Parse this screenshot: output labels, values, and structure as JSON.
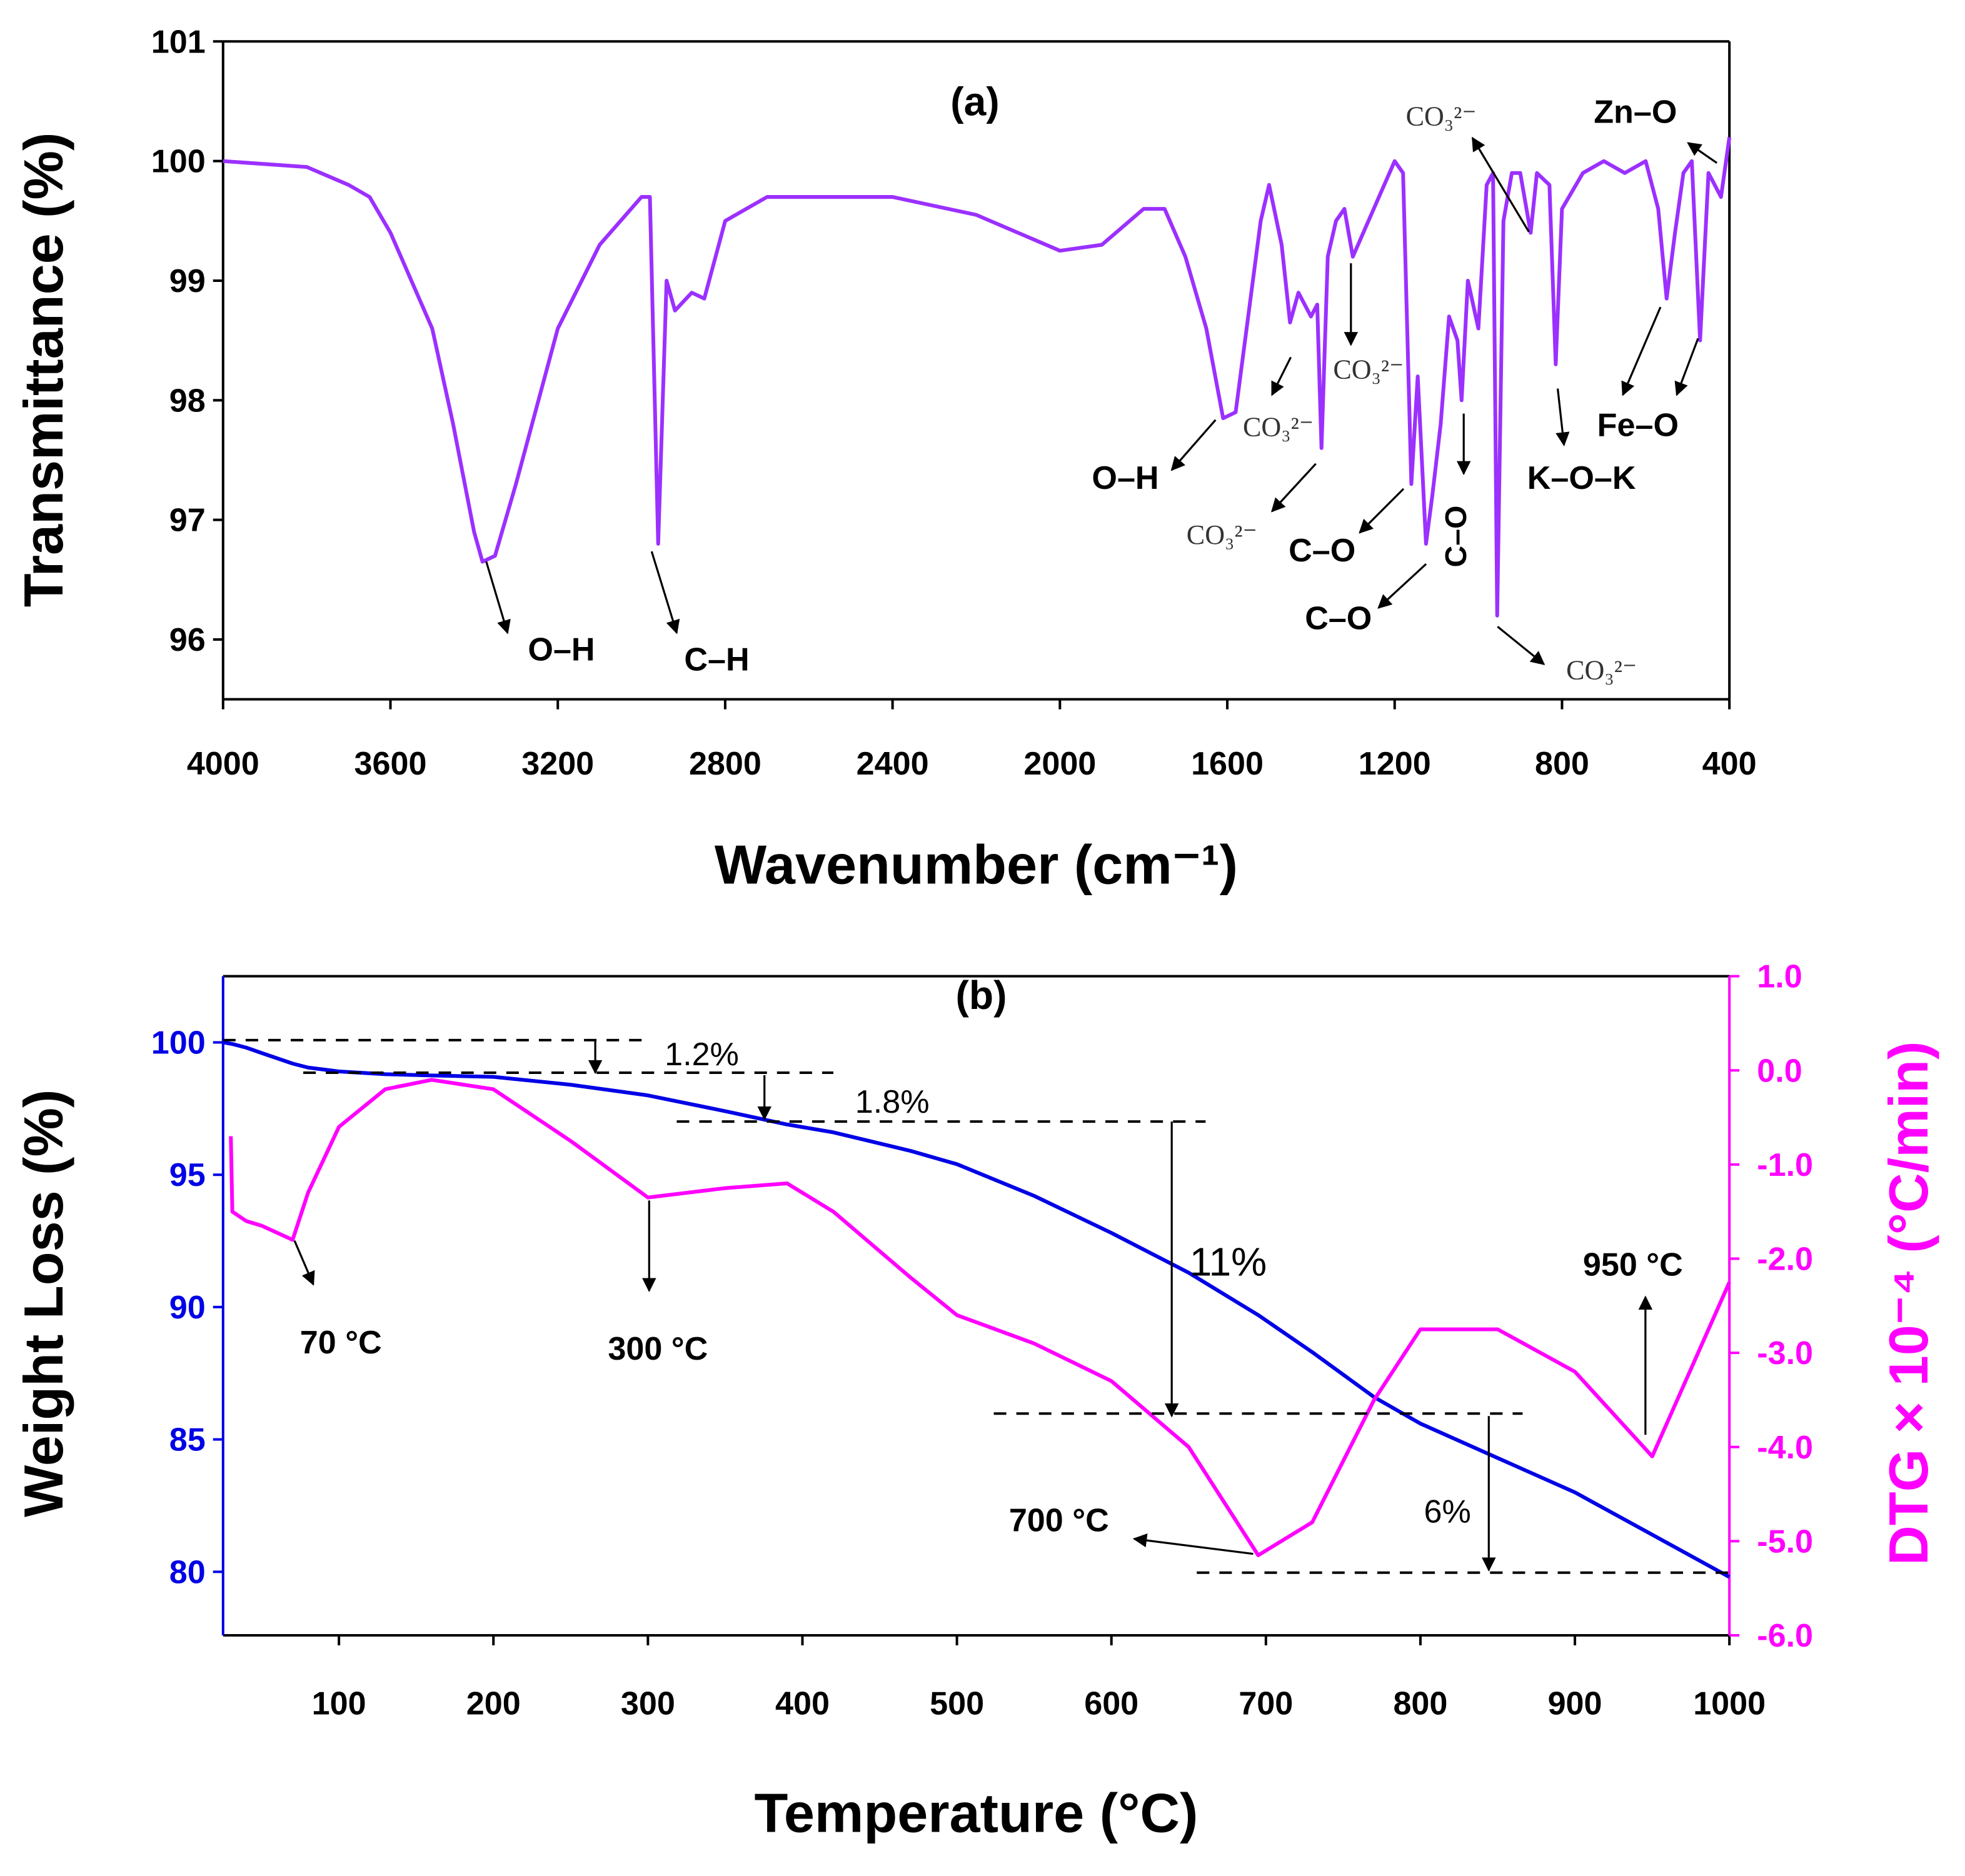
{
  "chart_data": [
    {
      "type": "line",
      "title": "(a)",
      "x_label": "Wavenumber (cm⁻¹)",
      "y_label": "Transmittance (%)",
      "xlim": [
        4000,
        400
      ],
      "xticks": [
        4000,
        3600,
        3200,
        2800,
        2400,
        2000,
        1600,
        1200,
        800,
        400
      ],
      "ylim": [
        95.5,
        101
      ],
      "yticks": [
        96,
        97,
        98,
        99,
        100,
        101
      ],
      "x": [
        4000,
        3800,
        3700,
        3650,
        3600,
        3500,
        3450,
        3400,
        3380,
        3350,
        3300,
        3200,
        3100,
        3000,
        2980,
        2960,
        2940,
        2920,
        2880,
        2850,
        2800,
        2700,
        2400,
        2200,
        2000,
        1900,
        1800,
        1750,
        1700,
        1650,
        1610,
        1580,
        1520,
        1500,
        1470,
        1450,
        1430,
        1400,
        1385,
        1375,
        1360,
        1340,
        1320,
        1300,
        1250,
        1200,
        1180,
        1160,
        1145,
        1125,
        1110,
        1090,
        1070,
        1050,
        1040,
        1025,
        1000,
        980,
        965,
        955,
        940,
        920,
        900,
        875,
        860,
        830,
        815,
        800,
        750,
        700,
        650,
        600,
        570,
        550,
        530,
        510,
        490,
        470,
        450,
        420,
        400
      ],
      "series": [
        {
          "color": "#9b30ff",
          "values": [
            100.0,
            99.95,
            99.8,
            99.7,
            99.4,
            98.6,
            97.8,
            96.9,
            96.65,
            96.7,
            97.3,
            98.6,
            99.3,
            99.7,
            99.7,
            96.8,
            99.0,
            98.75,
            98.9,
            98.85,
            99.5,
            99.7,
            99.7,
            99.55,
            99.25,
            99.3,
            99.6,
            99.6,
            99.2,
            98.6,
            97.85,
            97.9,
            99.5,
            99.8,
            99.3,
            98.65,
            98.9,
            98.7,
            98.8,
            97.6,
            99.2,
            99.5,
            99.6,
            99.2,
            99.6,
            100.0,
            99.9,
            97.3,
            98.2,
            96.8,
            97.2,
            97.8,
            98.7,
            98.5,
            98.0,
            99.0,
            98.6,
            99.8,
            99.9,
            96.2,
            99.5,
            99.9,
            99.9,
            99.4,
            99.9,
            99.8,
            98.3,
            99.6,
            99.9,
            100.0,
            99.9,
            100.0,
            99.6,
            98.85,
            99.4,
            99.9,
            100.0,
            98.5,
            99.9,
            99.7,
            100.2
          ]
        }
      ],
      "annotations": [
        "O–H",
        "C–H",
        "O–H",
        "CO₃²⁻",
        "CO₃²⁻",
        "CO₃²⁻",
        "C–O",
        "C–O",
        "C–O",
        "CO₃²⁻",
        "CO₃²⁻",
        "Zn–O",
        "Fe–O",
        "K–O–K"
      ]
    },
    {
      "type": "line",
      "title": "(b)",
      "x_label": "Temperature (°C)",
      "y_label": "Weight Loss (%)",
      "y2_label": "DTG × 10⁻⁴ (°C/min)",
      "xlim": [
        25,
        1000
      ],
      "xticks": [
        100,
        200,
        300,
        400,
        500,
        600,
        700,
        800,
        900,
        1000
      ],
      "ylim": [
        77.6,
        102.5
      ],
      "yticks": [
        80,
        85,
        90,
        95,
        100
      ],
      "y2lim": [
        -6,
        1
      ],
      "y2ticks": [
        {
          "value": -6,
          "label": "-6.0"
        },
        {
          "value": -5,
          "label": "-5.0"
        },
        {
          "value": -4,
          "label": "-4.0"
        },
        {
          "value": -3,
          "label": "-3.0"
        },
        {
          "value": -2,
          "label": "-2.0"
        },
        {
          "value": -1,
          "label": "-1.0"
        },
        {
          "value": 0,
          "label": "0.0"
        },
        {
          "value": 1,
          "label": "1.0"
        }
      ],
      "x": [
        25,
        30,
        31,
        40,
        50,
        70,
        80,
        100,
        130,
        160,
        200,
        250,
        300,
        350,
        390,
        420,
        470,
        500,
        550,
        600,
        650,
        695,
        730,
        770,
        800,
        850,
        900,
        950,
        1000
      ],
      "series": [
        {
          "color": "#0000e6",
          "values": [
            100.0,
            99.95,
            99.94,
            99.8,
            99.6,
            99.2,
            99.05,
            98.9,
            98.8,
            98.75,
            98.7,
            98.4,
            98.0,
            97.4,
            96.9,
            96.6,
            95.9,
            95.4,
            94.2,
            92.8,
            91.3,
            89.7,
            88.3,
            86.6,
            85.6,
            84.3,
            83.0,
            81.4,
            79.8
          ]
        },
        {
          "color": "#ff00ff",
          "axis": "y2",
          "values": [
            null,
            -0.7,
            -1.5,
            -1.6,
            -1.65,
            -1.8,
            -1.3,
            -0.6,
            -0.2,
            -0.1,
            -0.2,
            -0.75,
            -1.35,
            -1.25,
            -1.2,
            -1.5,
            -2.2,
            -2.6,
            -2.9,
            -3.3,
            -4.0,
            -5.15,
            -4.8,
            -3.5,
            -2.75,
            -2.75,
            -3.2,
            -4.1,
            -2.25
          ]
        }
      ],
      "annotations": [
        "1.2%",
        "1.8%",
        "11%",
        "6%",
        "70 °C",
        "300 °C",
        "700 °C",
        "950 °C"
      ]
    }
  ]
}
